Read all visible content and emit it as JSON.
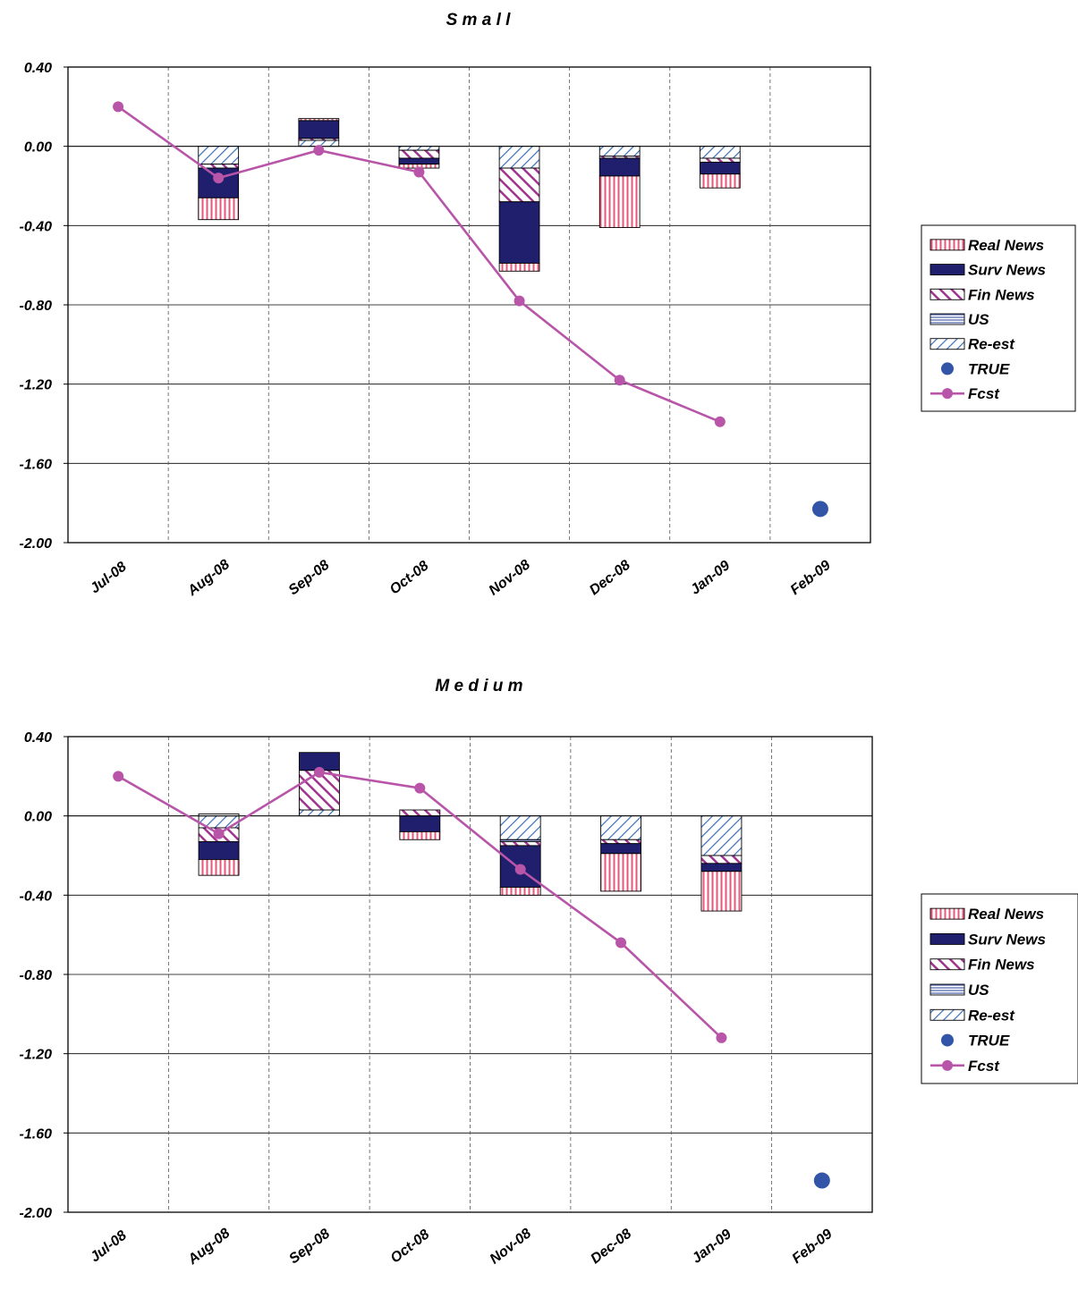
{
  "colors": {
    "real_news": "#e8577a",
    "surv_news": "#1f1f6e",
    "fin_news": "#a0358f",
    "us": "#4a5fa8",
    "re_est": "#3a6fb8",
    "true_point": "#3355a8",
    "fcst_line": "#b855a8",
    "gridline": "#000000"
  },
  "chart_data": [
    {
      "type": "bar",
      "title": "S m a l l",
      "categories": [
        "Jul-08",
        "Aug-08",
        "Sep-08",
        "Oct-08",
        "Nov-08",
        "Dec-08",
        "Jan-09",
        "Feb-09"
      ],
      "ylim": [
        -2.0,
        0.4
      ],
      "yticks": [
        "0.40",
        "0.00",
        "-0.40",
        "-0.80",
        "-1.20",
        "-1.60",
        "-2.00"
      ],
      "ytick_values": [
        0.4,
        0.0,
        -0.4,
        -0.8,
        -1.2,
        -1.6,
        -2.0
      ],
      "stacked": true,
      "grid": true,
      "legend_position": "right",
      "legend": [
        "Real News",
        "Surv News",
        "Fin News",
        "US",
        "Re-est",
        "TRUE",
        "Fcst"
      ],
      "series": [
        {
          "name": "Re-est",
          "key": "re_est",
          "values": [
            null,
            -0.09,
            0.03,
            -0.02,
            -0.11,
            -0.05,
            -0.06,
            null
          ]
        },
        {
          "name": "US",
          "key": "us",
          "values": [
            null,
            0.0,
            0.0,
            0.0,
            0.0,
            0.0,
            0.0,
            null
          ]
        },
        {
          "name": "Fin News",
          "key": "fin_news",
          "values": [
            null,
            -0.02,
            0.01,
            -0.04,
            -0.17,
            -0.01,
            -0.02,
            null
          ]
        },
        {
          "name": "Surv News",
          "key": "surv_news",
          "values": [
            null,
            -0.15,
            0.09,
            -0.03,
            -0.31,
            -0.09,
            -0.06,
            null
          ]
        },
        {
          "name": "Real News",
          "key": "real_news",
          "values": [
            null,
            -0.11,
            0.01,
            -0.02,
            -0.04,
            -0.26,
            -0.07,
            null
          ]
        }
      ],
      "fcst": {
        "name": "Fcst",
        "values": [
          0.2,
          -0.16,
          -0.02,
          -0.13,
          -0.78,
          -1.18,
          -1.39,
          null
        ]
      },
      "true_value": {
        "name": "TRUE",
        "category": "Feb-09",
        "value": -1.83
      }
    },
    {
      "type": "bar",
      "title": "M e d i u m",
      "categories": [
        "Jul-08",
        "Aug-08",
        "Sep-08",
        "Oct-08",
        "Nov-08",
        "Dec-08",
        "Jan-09",
        "Feb-09"
      ],
      "ylim": [
        -2.0,
        0.4
      ],
      "yticks": [
        "0.40",
        "0.00",
        "-0.40",
        "-0.80",
        "-1.20",
        "-1.60",
        "-2.00"
      ],
      "ytick_values": [
        0.4,
        0.0,
        -0.4,
        -0.8,
        -1.2,
        -1.6,
        -2.0
      ],
      "stacked": true,
      "grid": true,
      "legend_position": "right",
      "legend": [
        "Real News",
        "Surv News",
        "Fin News",
        "US",
        "Re-est",
        "TRUE",
        "Fcst"
      ],
      "series": [
        {
          "name": "Re-est",
          "key": "re_est",
          "values": [
            null,
            -0.06,
            0.03,
            0.0,
            -0.12,
            -0.12,
            -0.2,
            null
          ]
        },
        {
          "name": "US",
          "key": "us",
          "values": [
            null,
            0.01,
            0.0,
            0.0,
            -0.01,
            0.0,
            0.0,
            null
          ]
        },
        {
          "name": "Fin News",
          "key": "fin_news",
          "values": [
            null,
            -0.07,
            0.2,
            0.03,
            -0.02,
            -0.02,
            -0.04,
            null
          ]
        },
        {
          "name": "Surv News",
          "key": "surv_news",
          "values": [
            null,
            -0.09,
            0.09,
            -0.08,
            -0.21,
            -0.05,
            -0.04,
            null
          ]
        },
        {
          "name": "Real News",
          "key": "real_news",
          "values": [
            null,
            -0.08,
            0.0,
            -0.04,
            -0.04,
            -0.19,
            -0.2,
            null
          ]
        }
      ],
      "fcst": {
        "name": "Fcst",
        "values": [
          0.2,
          -0.09,
          0.22,
          0.14,
          -0.27,
          -0.64,
          -1.12,
          null
        ]
      },
      "true_value": {
        "name": "TRUE",
        "category": "Feb-09",
        "value": -1.84
      }
    }
  ]
}
